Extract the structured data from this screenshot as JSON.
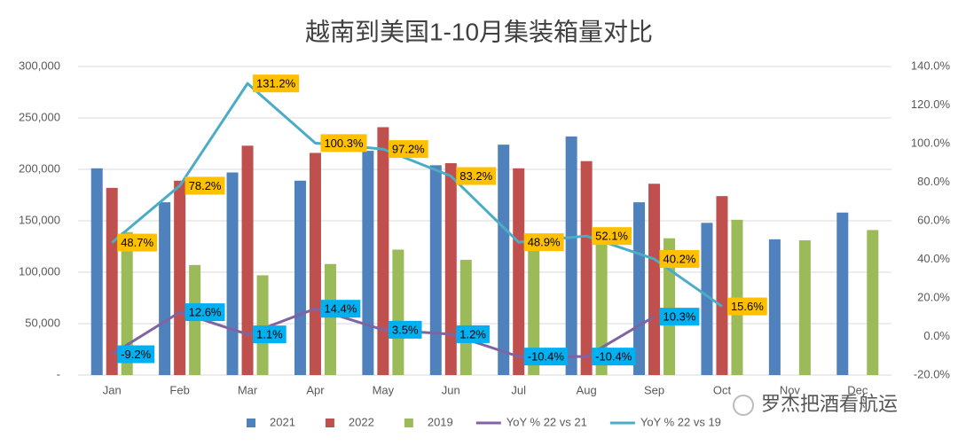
{
  "chart_data": {
    "type": "bar",
    "title": "越南到美国1-10月集装箱量对比",
    "categories": [
      "Jan",
      "Feb",
      "Mar",
      "Apr",
      "May",
      "Jun",
      "Jul",
      "Aug",
      "Sep",
      "Oct",
      "Nov",
      "Dec"
    ],
    "series": [
      {
        "name": "2021",
        "color": "#4f81bd",
        "values": [
          201000,
          168000,
          197000,
          189000,
          218000,
          204000,
          224000,
          232000,
          168000,
          148000,
          132000,
          158000
        ]
      },
      {
        "name": "2022",
        "color": "#c0504d",
        "values": [
          182000,
          189000,
          223000,
          216000,
          241000,
          206000,
          201000,
          208000,
          186000,
          174000,
          null,
          null
        ]
      },
      {
        "name": "2019",
        "color": "#9bbb59",
        "values": [
          139000,
          107000,
          97000,
          108000,
          122000,
          112000,
          128000,
          132000,
          133000,
          151000,
          131000,
          141000
        ]
      },
      {
        "name": "YoY % 22 vs 21",
        "type": "line",
        "axis": "y2",
        "color": "#8064a2",
        "values": [
          -9.2,
          12.6,
          1.1,
          14.4,
          3.5,
          1.2,
          -10.4,
          -10.4,
          10.3,
          null,
          null,
          null
        ],
        "value_labels": [
          "-9.2%",
          "12.6%",
          "1.1%",
          "14.4%",
          "3.5%",
          "1.2%",
          "-10.4%",
          "-10.4%",
          "10.3%",
          null,
          null,
          null
        ],
        "label_color": "#00b0f0"
      },
      {
        "name": "YoY % 22 vs 19",
        "type": "line",
        "axis": "y2",
        "color": "#4bacc6",
        "values": [
          48.7,
          78.2,
          131.2,
          100.3,
          97.2,
          83.2,
          48.9,
          52.1,
          40.2,
          15.6,
          null,
          null
        ],
        "value_labels": [
          "48.7%",
          "78.2%",
          "131.2%",
          "100.3%",
          "97.2%",
          "83.2%",
          "48.9%",
          "52.1%",
          "40.2%",
          "15.6%",
          null,
          null
        ],
        "label_color": "#ffc000"
      }
    ],
    "ylim": [
      0,
      300000
    ],
    "yticks": [
      {
        "value": 0,
        "label": "-"
      },
      {
        "value": 50000,
        "label": "50,000"
      },
      {
        "value": 100000,
        "label": "100,000"
      },
      {
        "value": 150000,
        "label": "150,000"
      },
      {
        "value": 200000,
        "label": "200,000"
      },
      {
        "value": 250000,
        "label": "250,000"
      },
      {
        "value": 300000,
        "label": "300,000"
      }
    ],
    "y2lim": [
      -20,
      140
    ],
    "y2ticks": [
      {
        "value": -20,
        "label": "-20.0%"
      },
      {
        "value": 0,
        "label": "0.0%"
      },
      {
        "value": 20,
        "label": "20.0%"
      },
      {
        "value": 40,
        "label": "40.0%"
      },
      {
        "value": 60,
        "label": "60.0%"
      },
      {
        "value": 80,
        "label": "80.0%"
      },
      {
        "value": 100,
        "label": "100.0%"
      },
      {
        "value": 120,
        "label": "120.0%"
      },
      {
        "value": 140,
        "label": "140.0%"
      }
    ],
    "grid": true,
    "legend": "bottom",
    "watermark": "罗杰把酒看航运"
  }
}
